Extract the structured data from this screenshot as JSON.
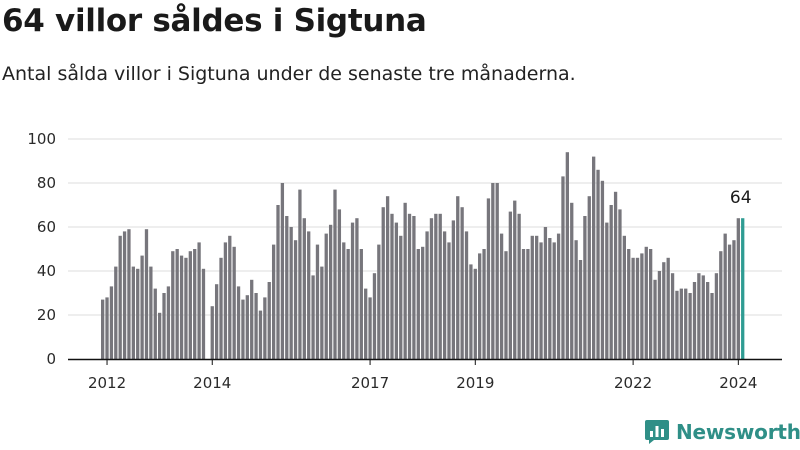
{
  "header": {
    "title": "64 villor såldes i Sigtuna",
    "subtitle": "Antal sålda villor i Sigtuna under de senaste tre månaderna."
  },
  "brand": {
    "name": "Newsworthy",
    "color": "#2f8f87"
  },
  "chart_data": {
    "type": "bar",
    "start_period": "2011-12",
    "period_unit": "month",
    "values": [
      27,
      28,
      33,
      42,
      56,
      58,
      59,
      42,
      41,
      47,
      59,
      42,
      32,
      21,
      30,
      33,
      49,
      50,
      47,
      46,
      49,
      50,
      53,
      41,
      0,
      24,
      34,
      46,
      53,
      56,
      51,
      33,
      27,
      29,
      36,
      30,
      22,
      28,
      35,
      52,
      70,
      80,
      65,
      60,
      54,
      77,
      64,
      58,
      38,
      52,
      42,
      57,
      61,
      77,
      68,
      53,
      50,
      62,
      64,
      50,
      32,
      28,
      39,
      52,
      69,
      74,
      66,
      62,
      56,
      71,
      66,
      65,
      50,
      51,
      58,
      64,
      66,
      66,
      58,
      53,
      63,
      74,
      69,
      58,
      43,
      41,
      48,
      50,
      73,
      80,
      80,
      57,
      49,
      67,
      72,
      66,
      50,
      50,
      56,
      56,
      53,
      60,
      55,
      53,
      57,
      83,
      94,
      71,
      54,
      45,
      65,
      74,
      92,
      86,
      81,
      62,
      70,
      76,
      68,
      56,
      50,
      46,
      46,
      48,
      51,
      50,
      36,
      40,
      44,
      46,
      39,
      31,
      32,
      32,
      30,
      35,
      39,
      38,
      35,
      30,
      39,
      49,
      57,
      52,
      54,
      64,
      64
    ],
    "highlight_index": 146,
    "highlight_label": "64",
    "bar_color": "#77767c",
    "highlight_color": "#2f9c93",
    "x_tick_labels": [
      "2012",
      "2014",
      "2017",
      "2019",
      "2022",
      "2024"
    ],
    "x_tick_positions": [
      "2012-01",
      "2014-01",
      "2017-01",
      "2019-01",
      "2022-01",
      "2024-01"
    ],
    "y_tick_labels": [
      "0",
      "20",
      "40",
      "60",
      "80",
      "100"
    ],
    "ylim": [
      0,
      100
    ],
    "grid": true,
    "legend": "none"
  }
}
